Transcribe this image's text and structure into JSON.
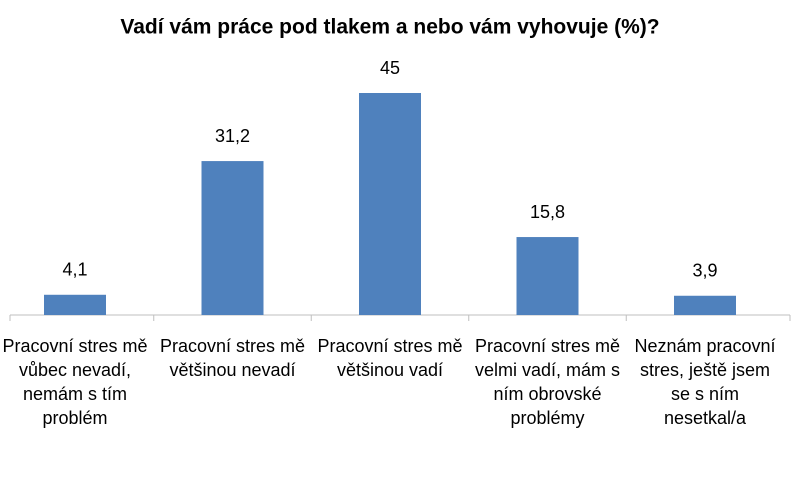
{
  "chart_data": {
    "type": "bar",
    "title": "Vadí vám práce pod tlakem a nebo vám vyhovuje (%)?",
    "categories": [
      "Pracovní stres mě vůbec nevadí, nemám s tím problém",
      "Pracovní stres mě většinou nevadí",
      "Pracovní stres mě většinou vadí",
      "Pracovní stres mě velmi vadí, mám s ním obrovské problémy",
      "Neznám pracovní stres, ještě jsem se s ním nesetkal/a"
    ],
    "values": [
      4.1,
      31.2,
      45,
      15.8,
      3.9
    ],
    "value_labels": [
      "4,1",
      "31,2",
      "45",
      "15,8",
      "3,9"
    ],
    "color": "#4f81bd"
  }
}
